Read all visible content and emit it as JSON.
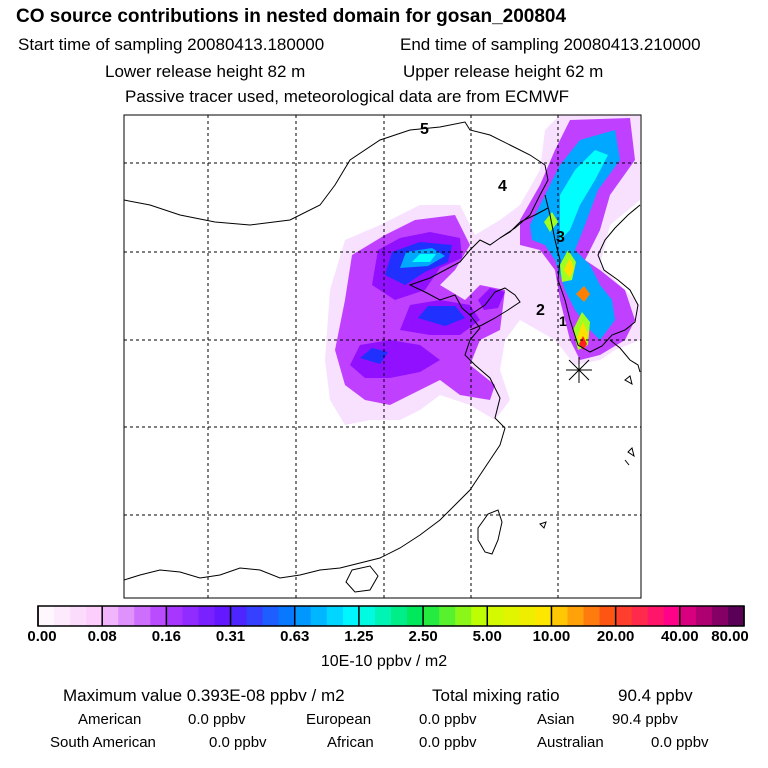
{
  "header": {
    "title": "CO  source contributions in nested domain for gosan_200804",
    "start_label": "Start time of sampling 20080413.180000",
    "end_label": "End time of sampling 20080413.210000",
    "lower_label": "Lower release height   82 m",
    "upper_label": "Upper release height   62 m",
    "note": "Passive tracer used, meteorological data are from ECMWF"
  },
  "map": {
    "labels": [
      "1",
      "2",
      "3",
      "4",
      "5"
    ],
    "colors": {
      "white": "#ffffff",
      "lavender": "#f0c8ff",
      "violet": "#c040ff",
      "purple": "#9010ff",
      "blue": "#2030ff",
      "sky": "#00a8ff",
      "cyan": "#00ffff",
      "green": "#a0ff20",
      "yellow": "#ffe000",
      "orange": "#ff8000",
      "red": "#ff2020"
    }
  },
  "colorbar": {
    "ticks": [
      "0.00",
      "0.08",
      "0.16",
      "0.31",
      "0.63",
      "1.25",
      "2.50",
      "5.00",
      "10.00",
      "20.00",
      "40.00",
      "80.00"
    ],
    "units": "10E-10 ppbv / m2"
  },
  "stats": {
    "max_label": "Maximum value  0.393E-08 ppbv / m2",
    "total_label": "Total mixing ratio",
    "total_value": "90.4 ppbv",
    "regions": [
      {
        "name": "American",
        "value": "0.0 ppbv"
      },
      {
        "name": "European",
        "value": "0.0 ppbv"
      },
      {
        "name": "Asian",
        "value": "90.4 ppbv"
      },
      {
        "name": "South American",
        "value": "0.0 ppbv"
      },
      {
        "name": "African",
        "value": "0.0 ppbv"
      },
      {
        "name": "Australian",
        "value": "0.0 ppbv"
      }
    ]
  }
}
